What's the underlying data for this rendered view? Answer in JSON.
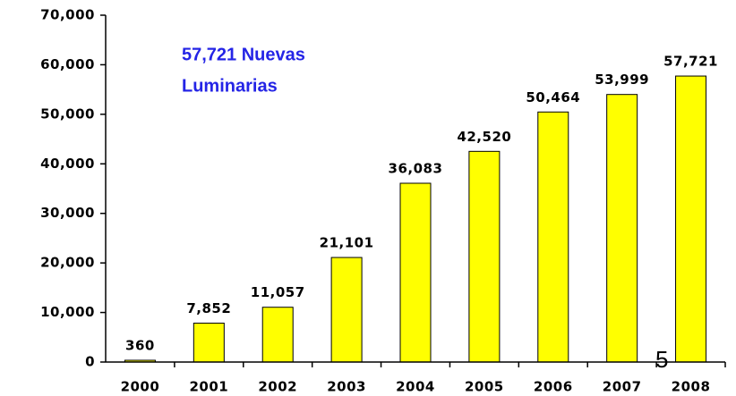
{
  "chart_data": {
    "type": "bar",
    "categories": [
      "2000",
      "2001",
      "2002",
      "2003",
      "2004",
      "2005",
      "2006",
      "2007",
      "2008"
    ],
    "values": [
      360,
      7852,
      11057,
      21101,
      36083,
      42520,
      50464,
      53999,
      57721
    ],
    "value_labels": [
      "360",
      "7,852",
      "11,057",
      "21,101",
      "36,083",
      "42,520",
      "50,464",
      "53,999",
      "57,721"
    ],
    "color": "#ffff00",
    "ylim": [
      0,
      70000
    ],
    "yticks": [
      0,
      {
        "value": 10000,
        "label": "10,000"
      },
      {
        "value": 20000,
        "label": "20,000"
      },
      {
        "value": 30000,
        "label": "30,000"
      },
      {
        "value": 40000,
        "label": "40,000"
      },
      {
        "value": 50000,
        "label": "50,000"
      },
      {
        "value": 60000,
        "label": "60,000"
      },
      {
        "value": 70000,
        "label": "70,000"
      }
    ],
    "annotation": [
      "57,721 Nuevas",
      "Luminarias"
    ],
    "page_number": "5"
  }
}
